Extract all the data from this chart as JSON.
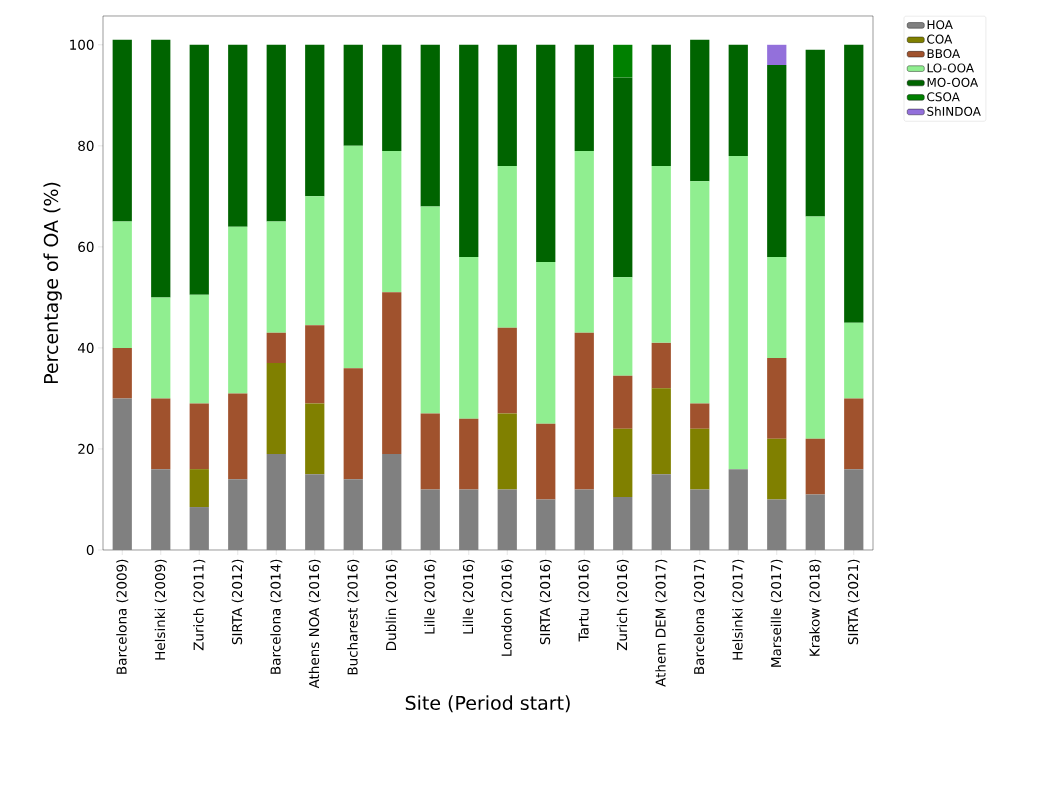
{
  "chart_data": {
    "type": "bar",
    "stacked": true,
    "xlabel": "Site (Period start)",
    "ylabel": "Percentage of OA (%)",
    "categories": [
      "Barcelona (2009)",
      "Helsinki (2009)",
      "Zurich (2011)",
      "SIRTA (2012)",
      "Barcelona (2014)",
      "Athens NOA (2016)",
      "Bucharest (2016)",
      "Dublin (2016)",
      "Lille (2016)",
      "Lille (2016)",
      "London (2016)",
      "SIRTA (2016)",
      "Tartu (2016)",
      "Zurich (2016)",
      "Athem DEM (2017)",
      "Barcelona (2017)",
      "Helsinki (2017)",
      "Marseille (2017)",
      "Krakow (2018)",
      "SIRTA (2021)"
    ],
    "series": [
      {
        "name": "HOA",
        "color": "#808080",
        "values": [
          30,
          16,
          8.5,
          14,
          19,
          15,
          14,
          19,
          12,
          12,
          12,
          10,
          12,
          10.5,
          15,
          12,
          16,
          10,
          11,
          16
        ]
      },
      {
        "name": "COA",
        "color": "#808000",
        "values": [
          0,
          0,
          7.5,
          0,
          18,
          14,
          0,
          0,
          0,
          0,
          15,
          0,
          0,
          13.5,
          17,
          12,
          0,
          12,
          0,
          0
        ]
      },
      {
        "name": "BBOA",
        "color": "#a0522d",
        "values": [
          10,
          14,
          13,
          17,
          6,
          15.5,
          22,
          32,
          15,
          14,
          17,
          15,
          31,
          10.5,
          9,
          5,
          0,
          16,
          11,
          14
        ]
      },
      {
        "name": "LO-OOA",
        "color": "#90ee90",
        "values": [
          25,
          20,
          21.5,
          33,
          22,
          25.5,
          44,
          28,
          41,
          32,
          32,
          32,
          36,
          19.5,
          35,
          44,
          62,
          20,
          44,
          15
        ]
      },
      {
        "name": "MO-OOA",
        "color": "#006400",
        "values": [
          36,
          51,
          49.5,
          36,
          35,
          30,
          20,
          21,
          32,
          42,
          24,
          43,
          21,
          39.5,
          24,
          28,
          22,
          38,
          33,
          55
        ]
      },
      {
        "name": "CSOA",
        "color": "#008000",
        "values": [
          0,
          0,
          0,
          0,
          0,
          0,
          0,
          0,
          0,
          0,
          0,
          0,
          0,
          6.5,
          0,
          0,
          0,
          0,
          0,
          0
        ]
      },
      {
        "name": "ShINDOA",
        "color": "#9370db",
        "values": [
          0,
          0,
          0,
          0,
          0,
          0,
          0,
          0,
          0,
          0,
          0,
          0,
          0,
          0,
          0,
          0,
          0,
          4,
          0,
          0
        ]
      }
    ],
    "ylim": [
      0,
      105.7
    ],
    "yticks": [
      0,
      20,
      40,
      60,
      80,
      100
    ],
    "legend": "top right",
    "grid": false
  }
}
